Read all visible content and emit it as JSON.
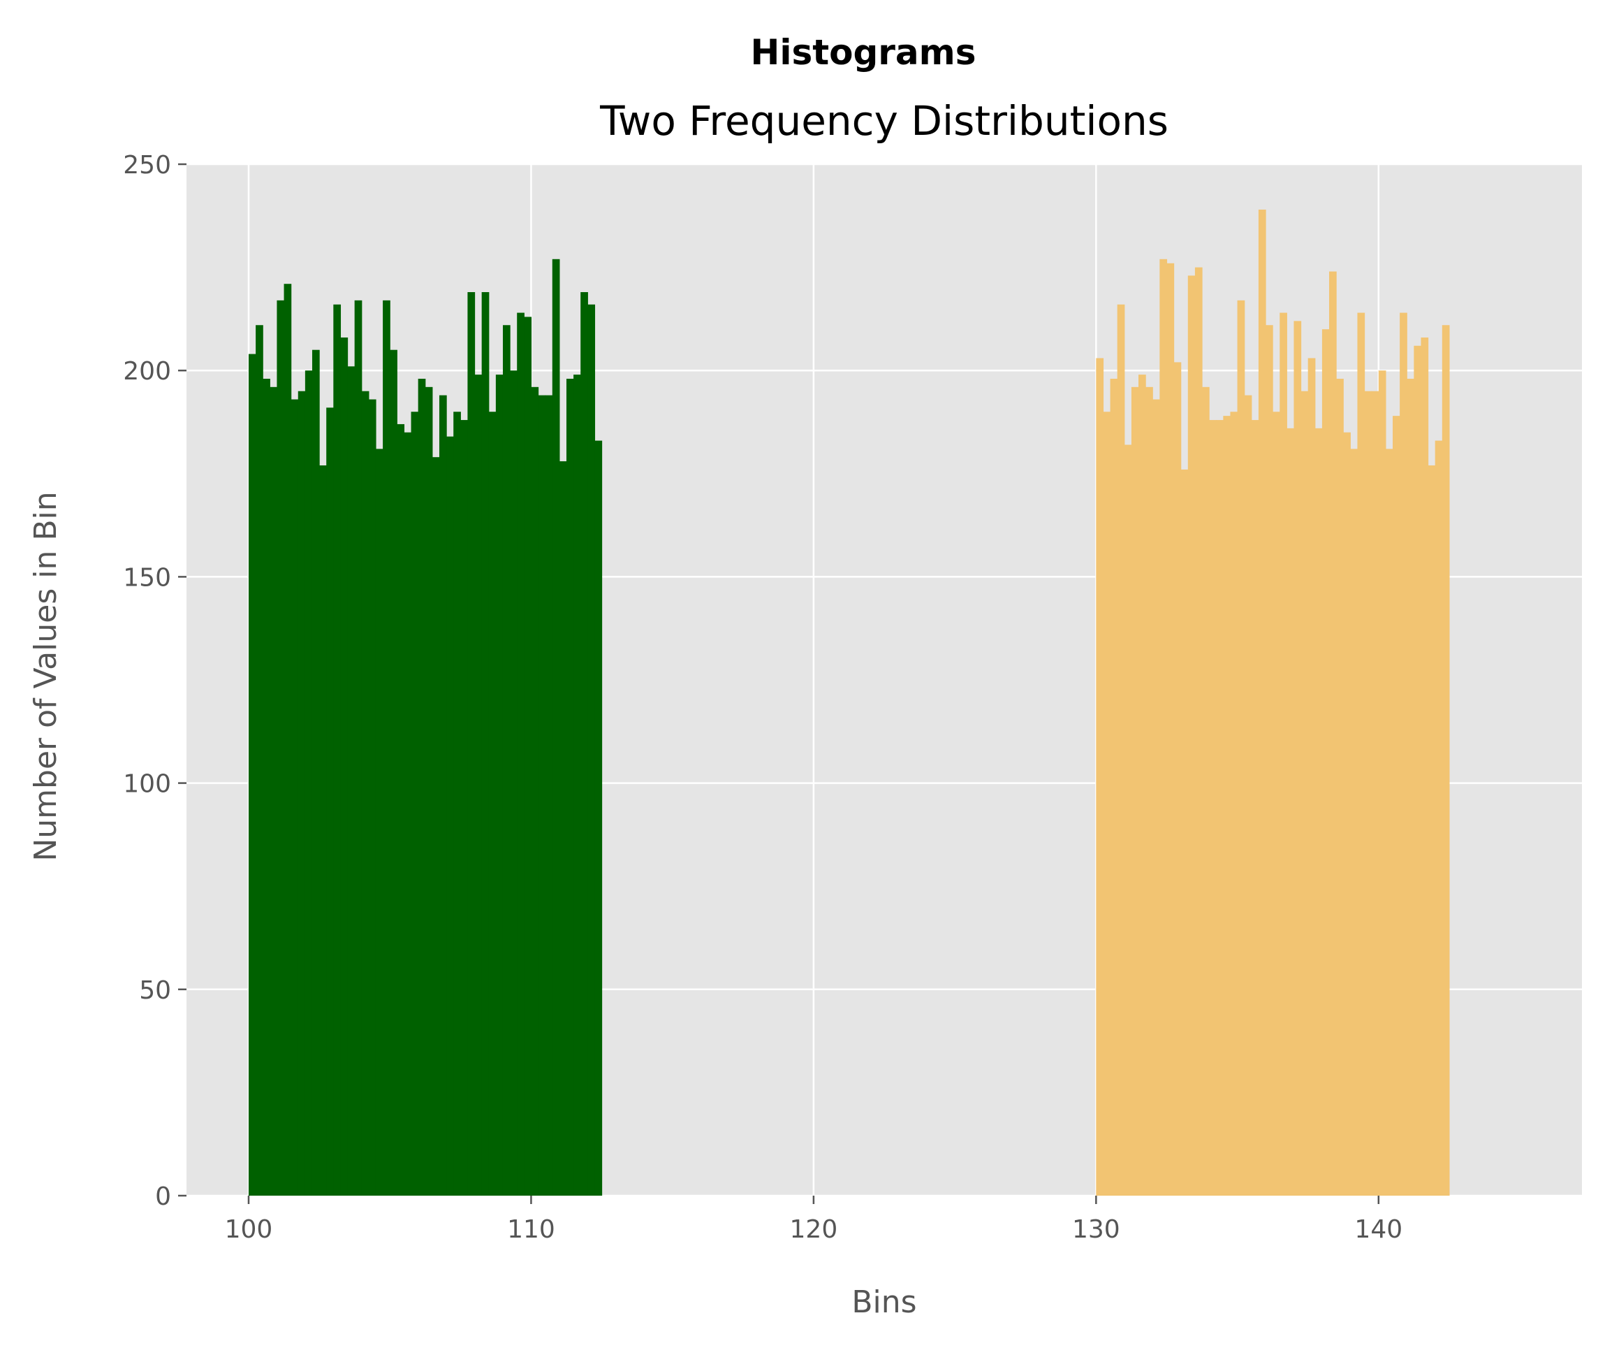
{
  "chart_data": {
    "type": "bar",
    "title": "Histograms",
    "subtitle": "Two Frequency Distributions",
    "xlabel": "Bins",
    "ylabel": "Number of Values in Bin",
    "xlim": [
      97.8,
      147.2
    ],
    "ylim": [
      0,
      250
    ],
    "xticks": [
      100,
      110,
      120,
      130,
      140
    ],
    "yticks": [
      0,
      50,
      100,
      150,
      200,
      250
    ],
    "grid": true,
    "legend": "none",
    "background": "#e5e5e5",
    "series": [
      {
        "color": "#006100",
        "opacity": 1.0,
        "bin_start": 100,
        "bin_width": 0.25,
        "values": [
          204,
          211,
          198,
          196,
          217,
          221,
          193,
          195,
          200,
          205,
          177,
          191,
          216,
          208,
          201,
          217,
          195,
          193,
          181,
          217,
          205,
          187,
          185,
          190,
          198,
          196,
          179,
          194,
          184,
          190,
          188,
          219,
          199,
          219,
          190,
          199,
          211,
          200,
          214,
          213,
          196,
          194,
          194,
          227,
          178,
          198,
          199,
          219,
          216,
          183
        ]
      },
      {
        "color": "#f2c472",
        "opacity": 1.0,
        "bin_start": 130,
        "bin_width": 0.25,
        "values": [
          203,
          190,
          198,
          216,
          182,
          196,
          199,
          196,
          193,
          227,
          226,
          202,
          176,
          223,
          225,
          196,
          188,
          188,
          189,
          190,
          217,
          194,
          188,
          239,
          211,
          190,
          214,
          186,
          212,
          195,
          203,
          186,
          210,
          224,
          198,
          185,
          181,
          214,
          195,
          195,
          200,
          181,
          189,
          214,
          198,
          206,
          208,
          177,
          183,
          211
        ]
      }
    ]
  }
}
